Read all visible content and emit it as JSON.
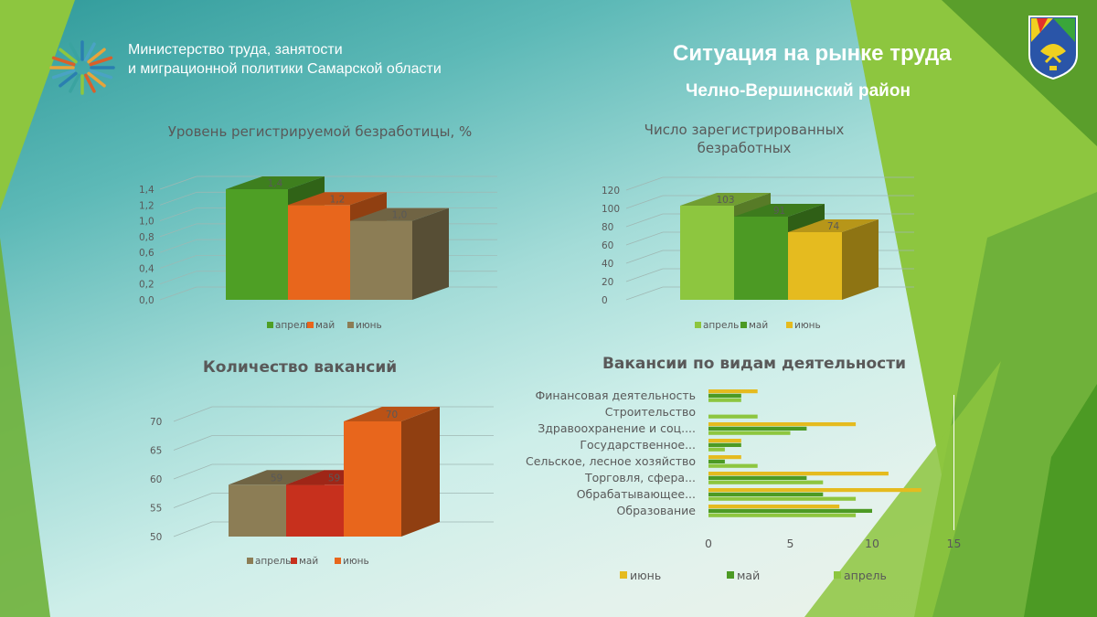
{
  "header": {
    "org_line1": "Министерство труда, занятости",
    "org_line2": "и миграционной политики  Самарской области",
    "title": "Ситуация на рынке труда",
    "subtitle": "Челно-Вершинский район"
  },
  "colors": {
    "bright_green": "#5aa62e",
    "dark_green": "#4c9a24",
    "light_green": "#8dc63f",
    "orange": "#e8661c",
    "khaki": "#8c7d55",
    "red": "#c7301d",
    "yellow": "#e5bb1f"
  },
  "chart_data": [
    {
      "id": "unemployment_rate",
      "type": "bar",
      "title": "Уровень регистрируемой  безработицы, %",
      "categories": [
        "апрель",
        "май",
        "июнь"
      ],
      "values": [
        1.4,
        1.2,
        1.0
      ],
      "value_labels": [
        "1,4",
        "1,2",
        "1,0"
      ],
      "colors": [
        "#4e9f25",
        "#e8661c",
        "#8c7d55"
      ],
      "ylim": [
        0,
        1.4
      ],
      "yticks": [
        "0,0",
        "0,2",
        "0,4",
        "0,6",
        "0,8",
        "1,0",
        "1,2",
        "1,4"
      ],
      "grid": true,
      "legend": "bottom"
    },
    {
      "id": "registered_unemployed",
      "type": "bar",
      "title": "Число зарегистрированных безработных",
      "categories": [
        "апрель",
        "май",
        "июнь"
      ],
      "values": [
        103,
        91,
        74
      ],
      "value_labels": [
        "103",
        "91",
        "74"
      ],
      "colors": [
        "#8dc63f",
        "#4c9a24",
        "#e5bb1f"
      ],
      "ylim": [
        0,
        120
      ],
      "yticks": [
        "0",
        "20",
        "40",
        "60",
        "80",
        "100",
        "120"
      ],
      "grid": true,
      "legend": "bottom"
    },
    {
      "id": "vacancies_count",
      "type": "bar",
      "title": "Количество вакансий",
      "categories": [
        "апрель",
        "май",
        "июнь"
      ],
      "values": [
        59,
        59,
        70
      ],
      "value_labels": [
        "59",
        "59",
        "70"
      ],
      "colors": [
        "#8c7d55",
        "#c7301d",
        "#e8661c"
      ],
      "ylim": [
        50,
        70
      ],
      "yticks": [
        "50",
        "55",
        "60",
        "65",
        "70"
      ],
      "grid": true,
      "legend": "bottom"
    },
    {
      "id": "vacancies_by_activity",
      "type": "bar",
      "orientation": "horizontal",
      "title": "Вакансии по видам деятельности",
      "categories": [
        "Финансовая  деятельность",
        "Строительство",
        "Здравоохранение и соц....",
        "Государственное...",
        "Сельское, лесное хозяйство",
        "Торговля, сфера...",
        "Обрабатывающее...",
        "Образование"
      ],
      "series": [
        {
          "name": "июнь",
          "color": "#e5bb1f",
          "values": [
            3,
            0,
            9,
            2,
            2,
            11,
            13,
            8
          ]
        },
        {
          "name": "май",
          "color": "#4c9a24",
          "values": [
            2,
            0,
            6,
            2,
            1,
            6,
            7,
            10
          ]
        },
        {
          "name": "апрель",
          "color": "#8dc63f",
          "values": [
            2,
            3,
            5,
            1,
            3,
            7,
            9,
            9
          ]
        }
      ],
      "xlim": [
        0,
        15
      ],
      "xticks": [
        "0",
        "5",
        "10",
        "15"
      ],
      "grid": false,
      "legend": "bottom"
    }
  ]
}
